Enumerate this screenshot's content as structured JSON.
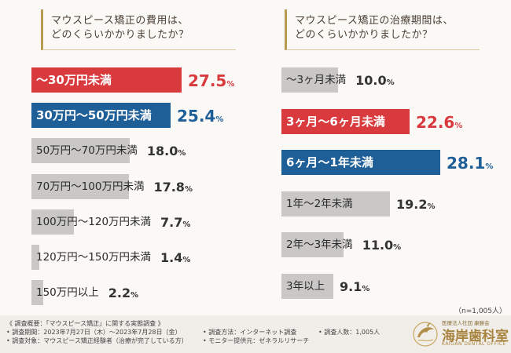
{
  "chart_data": [
    {
      "type": "bar",
      "orientation": "horizontal",
      "title": "マウスピース矯正の費用は、どのくらいかかりましたか？",
      "title_lines": [
        "マウスピース矯正の費用は、",
        "どのくらいかかりましたか？"
      ],
      "unit": "%",
      "categories": [
        "〜30万円未満",
        "30万円〜50万円未満",
        "50万円〜70万円未満",
        "70万円〜100万円未満",
        "100万円〜120万円未満",
        "120万円〜150万円未満",
        "150万円以上"
      ],
      "values": [
        27.5,
        25.4,
        18.0,
        17.8,
        7.7,
        1.4,
        2.2
      ],
      "value_labels": [
        {
          "num": "27.5",
          "pct": "%"
        },
        {
          "num": "25.4",
          "pct": "%"
        },
        {
          "num": "18.0",
          "pct": "%"
        },
        {
          "num": "17.8",
          "pct": "%"
        },
        {
          "num": "7.7",
          "pct": "%"
        },
        {
          "num": "1.4",
          "pct": "%"
        },
        {
          "num": "2.2",
          "pct": "%"
        }
      ],
      "highlight": [
        "red",
        "blue",
        "",
        "",
        "",
        "",
        ""
      ]
    },
    {
      "type": "bar",
      "orientation": "horizontal",
      "title": "マウスピース矯正の治療期間は、どのくらいかかりましたか？",
      "title_lines": [
        "マウスピース矯正の治療期間は、",
        "どのくらいかかりましたか？"
      ],
      "unit": "%",
      "categories": [
        "〜3ヶ月未満",
        "3ヶ月〜6ヶ月未満",
        "6ヶ月〜1年未満",
        "1年〜2年未満",
        "2年〜3年未満",
        "3年以上"
      ],
      "values": [
        10.0,
        22.6,
        28.1,
        19.2,
        11.0,
        9.1
      ],
      "value_labels": [
        {
          "num": "10.0",
          "pct": "%"
        },
        {
          "num": "22.6",
          "pct": "%"
        },
        {
          "num": "28.1",
          "pct": "%"
        },
        {
          "num": "19.2",
          "pct": "%"
        },
        {
          "num": "11.0",
          "pct": "%"
        },
        {
          "num": "9.1",
          "pct": "%"
        }
      ],
      "highlight": [
        "",
        "red",
        "blue",
        "",
        "",
        ""
      ],
      "note": "（n=1,005人）"
    }
  ],
  "footer": {
    "line1": "《 調査概要：「マウスピース矯正」に関する実態調査 》",
    "period": "• 調査期間：2023年7月27日（木）〜2023年7月28日（金）",
    "method": "• 調査方法：インターネット調査",
    "count": "• 調査人数：1,005人",
    "target": "• 調査対象：マウスピース矯正経験者（治療が完了している方）",
    "provider": "• モニター提供元：ゼネラルリサーチ"
  },
  "logo": {
    "top": "医療法人社団 康勝会",
    "main": "海岸歯科室",
    "sub": "KAIGAN DENTAL OFFICE",
    "icon": "dolphin-icon"
  },
  "colors": {
    "red": "#d83a3e",
    "blue": "#1f5f98",
    "gray": "#c9c8c6",
    "gold": "#a8843f"
  }
}
